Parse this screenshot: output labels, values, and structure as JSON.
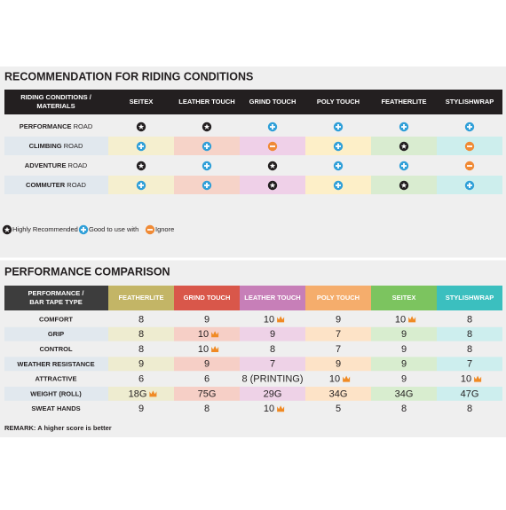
{
  "section1": {
    "title": "RECOMMENDATION FOR RIDING CONDITIONS",
    "header_label": [
      "RIDING CONDITIONS /",
      "MATERIALS"
    ],
    "columns": [
      "SEITEX",
      "LEATHER TOUCH",
      "GRIND TOUCH",
      "POLY TOUCH",
      "FEATHERLITE",
      "STYLISHWRAP"
    ],
    "rows": [
      [
        "PERFORMANCE",
        "ROAD"
      ],
      [
        "CLIMBING",
        "ROAD"
      ],
      [
        "ADVENTURE",
        "ROAD"
      ],
      [
        "COMMUTER",
        "ROAD"
      ]
    ]
  },
  "legend": [
    "Highly Recommended",
    "Good to use with",
    "Ignore"
  ],
  "section2": {
    "title": "PERFORMANCE COMPARISON",
    "header_label": [
      "PERFORMANCE /",
      "BAR TAPE TYPE"
    ],
    "columns": [
      "FEATHERLITE",
      "GRIND TOUCH",
      "LEATHER TOUCH",
      "POLY TOUCH",
      "SEITEX",
      "STYLISHWRAP"
    ],
    "rows": [
      {
        "label": "COMFORT",
        "values": [
          8,
          9,
          10,
          9,
          10,
          8
        ]
      },
      {
        "label": "GRIP",
        "values": [
          8,
          10,
          9,
          7,
          9,
          8
        ]
      },
      {
        "label": "CONTROL",
        "values": [
          8,
          10,
          8,
          7,
          9,
          8
        ]
      },
      {
        "label": "WEATHER RESISTANCE",
        "values": [
          9,
          9,
          7,
          9,
          9,
          7
        ]
      },
      {
        "label": "ATTRACTIVE",
        "values": [
          6,
          6,
          "8 (PRINTING)",
          10,
          9,
          10
        ]
      },
      {
        "label": "WEIGHT (ROLL)",
        "values": [
          "18G",
          "75G",
          "29G",
          "34G",
          "34G",
          "47G"
        ]
      },
      {
        "label": "SWEAT HANDS",
        "values": [
          9,
          8,
          10,
          5,
          8,
          8
        ]
      }
    ]
  },
  "remark": "REMARK: A higher score is better"
}
